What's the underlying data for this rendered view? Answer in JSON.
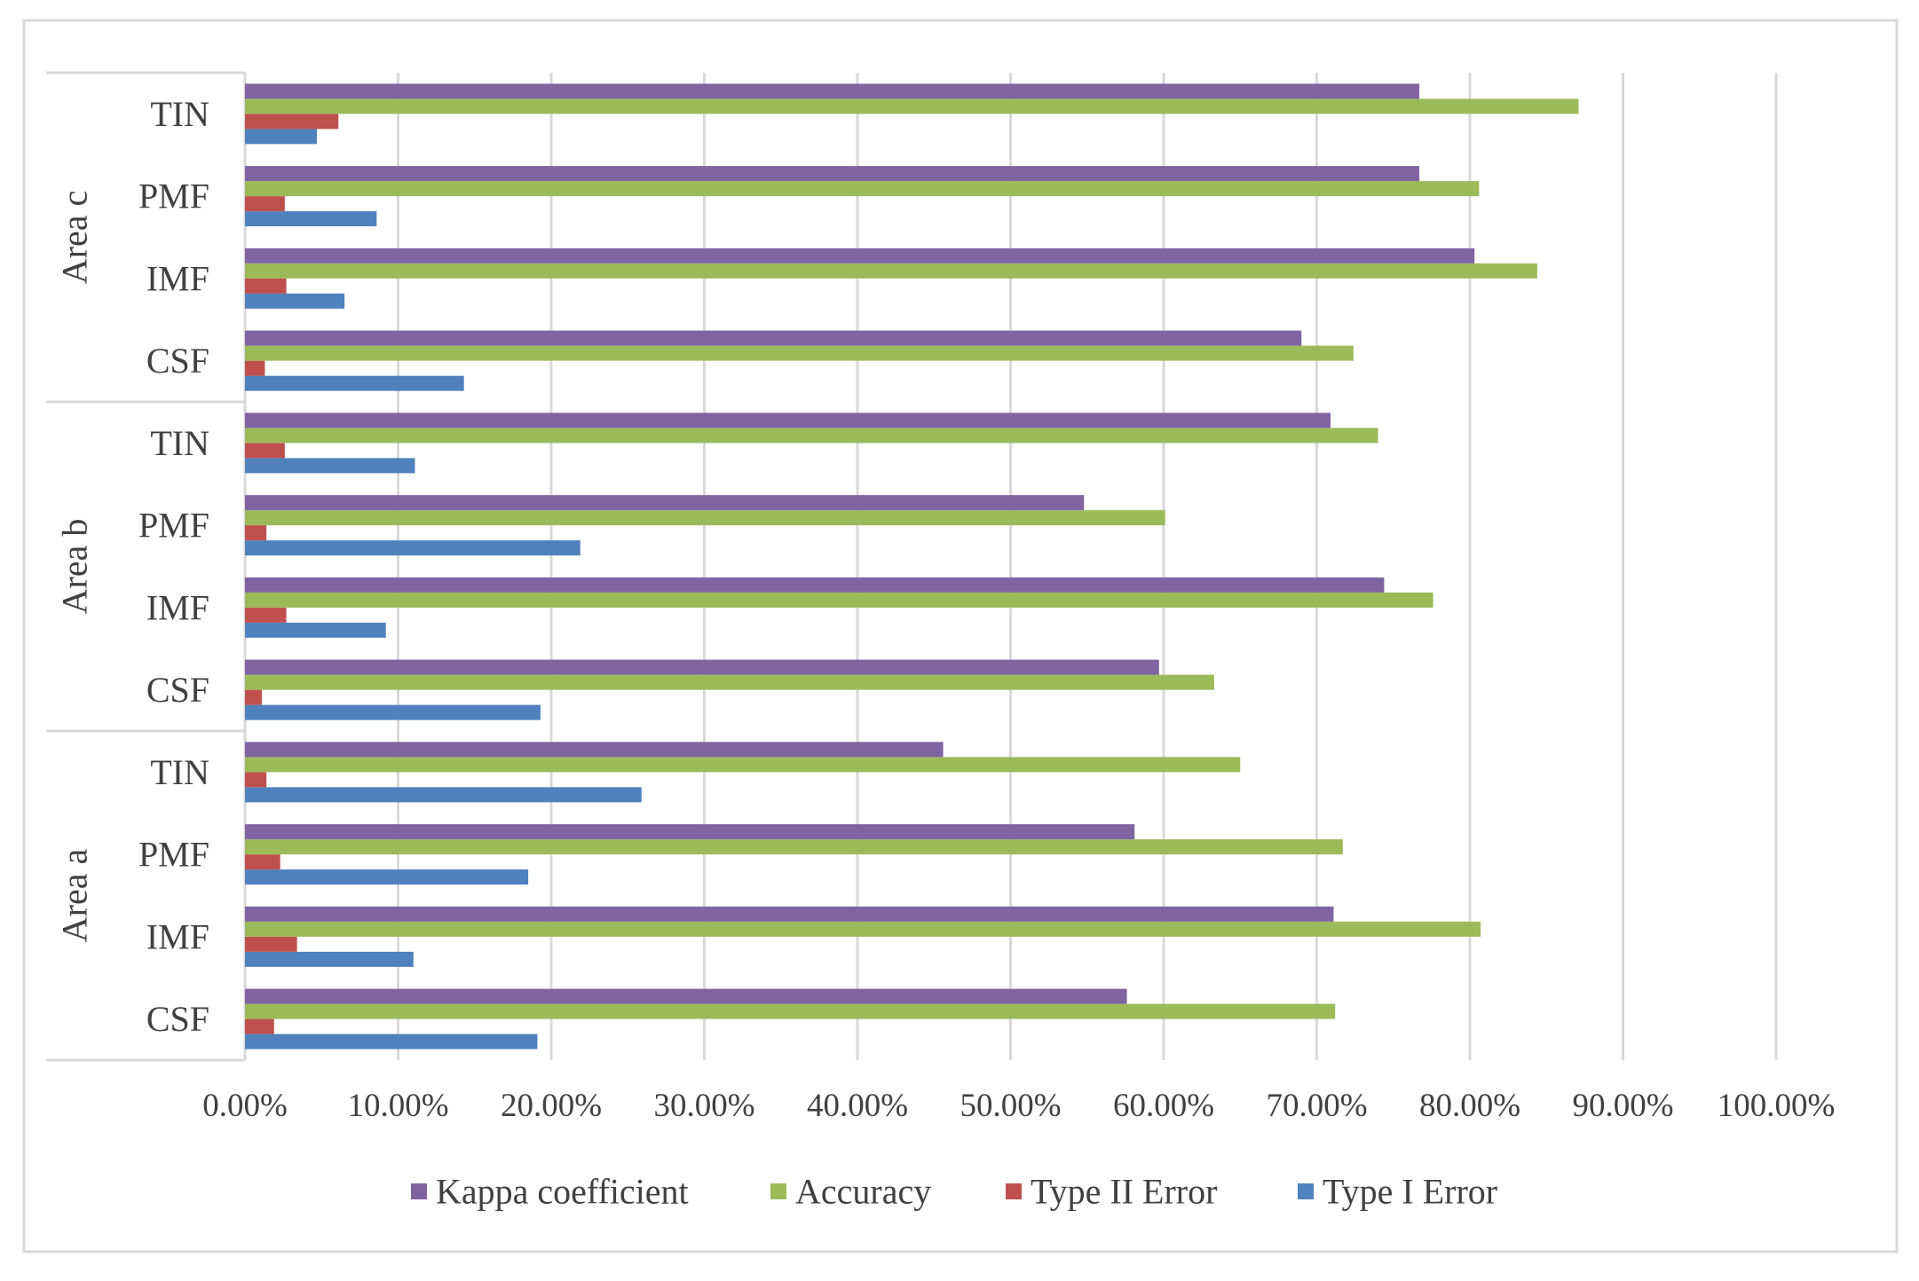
{
  "chart_data": {
    "type": "bar",
    "orientation": "horizontal",
    "title": "",
    "xlabel": "",
    "ylabel": "",
    "xlim": [
      0,
      1
    ],
    "x_ticks": [
      0,
      0.1,
      0.2,
      0.3,
      0.4,
      0.5,
      0.6,
      0.7,
      0.8,
      0.9,
      1.0
    ],
    "x_tick_labels": [
      "0.00%",
      "10.00%",
      "20.00%",
      "30.00%",
      "40.00%",
      "50.00%",
      "60.00%",
      "70.00%",
      "80.00%",
      "90.00%",
      "100.00%"
    ],
    "grid": "vertical",
    "legend_position": "bottom",
    "groups": [
      {
        "label": "Area a",
        "categories": [
          "CSF",
          "IMF",
          "PMF",
          "TIN"
        ]
      },
      {
        "label": "Area b",
        "categories": [
          "CSF",
          "IMF",
          "PMF",
          "TIN"
        ]
      },
      {
        "label": "Area c",
        "categories": [
          "CSF",
          "IMF",
          "PMF",
          "TIN"
        ]
      }
    ],
    "series": [
      {
        "name": "Type I Error",
        "color": "#4F81BD",
        "values": [
          0.191,
          0.11,
          0.185,
          0.259,
          0.193,
          0.092,
          0.219,
          0.111,
          0.143,
          0.065,
          0.086,
          0.047
        ]
      },
      {
        "name": "Type II Error",
        "color": "#C0504D",
        "values": [
          0.019,
          0.034,
          0.023,
          0.014,
          0.011,
          0.027,
          0.014,
          0.026,
          0.013,
          0.027,
          0.026,
          0.061
        ]
      },
      {
        "name": "Accuracy",
        "color": "#9BBB59",
        "values": [
          0.712,
          0.807,
          0.717,
          0.65,
          0.633,
          0.776,
          0.601,
          0.74,
          0.724,
          0.844,
          0.806,
          0.871
        ]
      },
      {
        "name": "Kappa coefficient",
        "color": "#8064A2",
        "values": [
          0.576,
          0.711,
          0.581,
          0.456,
          0.597,
          0.744,
          0.548,
          0.709,
          0.69,
          0.803,
          0.767,
          0.767
        ]
      }
    ],
    "legend_order": [
      "Kappa coefficient",
      "Accuracy",
      "Type II Error",
      "Type I Error"
    ]
  }
}
